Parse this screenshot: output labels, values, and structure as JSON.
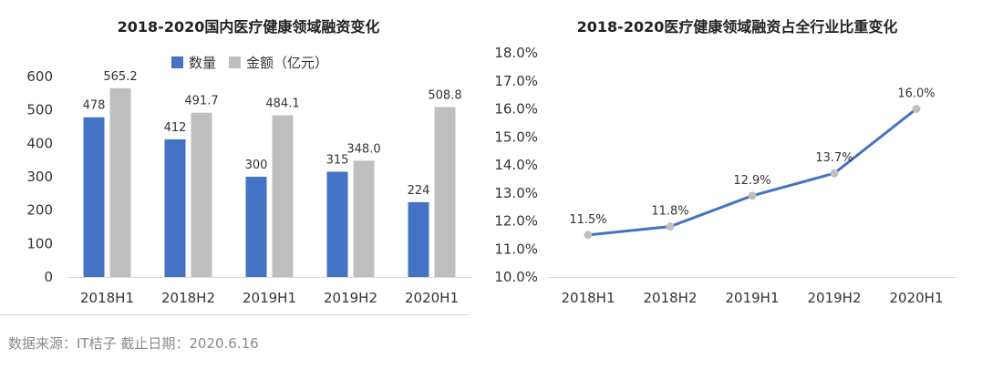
{
  "source": "数据来源：IT桔子  截止日期：2020.6.16",
  "colors": {
    "count": "#4472c4",
    "amount": "#bfbfbf",
    "line": "#4472c4",
    "point": "#bfbfbf"
  },
  "chart_data": [
    {
      "type": "bar",
      "title": "2018-2020国内医疗健康领域融资变化",
      "categories": [
        "2018H1",
        "2018H2",
        "2019H1",
        "2019H2",
        "2020H1"
      ],
      "series": [
        {
          "name": "数量",
          "values": [
            478,
            412,
            300,
            315,
            224
          ]
        },
        {
          "name": "金额（亿元）",
          "values": [
            565.2,
            491.7,
            484.1,
            348.0,
            508.8
          ]
        }
      ],
      "value_labels": [
        [
          "478",
          "412",
          "300",
          "315",
          "224"
        ],
        [
          "565.2",
          "491.7",
          "484.1",
          "348.0",
          "508.8"
        ]
      ],
      "ylim": [
        0,
        600
      ],
      "yticks": [
        "0",
        "100",
        "200",
        "300",
        "400",
        "500",
        "600"
      ],
      "legend": "top",
      "grid": false
    },
    {
      "type": "line",
      "title": "2018-2020医疗健康领域融资占全行业比重变化",
      "categories": [
        "2018H1",
        "2018H2",
        "2019H1",
        "2019H2",
        "2020H1"
      ],
      "values": [
        11.5,
        11.8,
        12.9,
        13.7,
        16.0
      ],
      "value_labels": [
        "11.5%",
        "11.8%",
        "12.9%",
        "13.7%",
        "16.0%"
      ],
      "ylim": [
        10,
        18
      ],
      "yticks": [
        "10.0%",
        "11.0%",
        "12.0%",
        "13.0%",
        "14.0%",
        "15.0%",
        "16.0%",
        "17.0%",
        "18.0%"
      ],
      "grid": false
    }
  ]
}
